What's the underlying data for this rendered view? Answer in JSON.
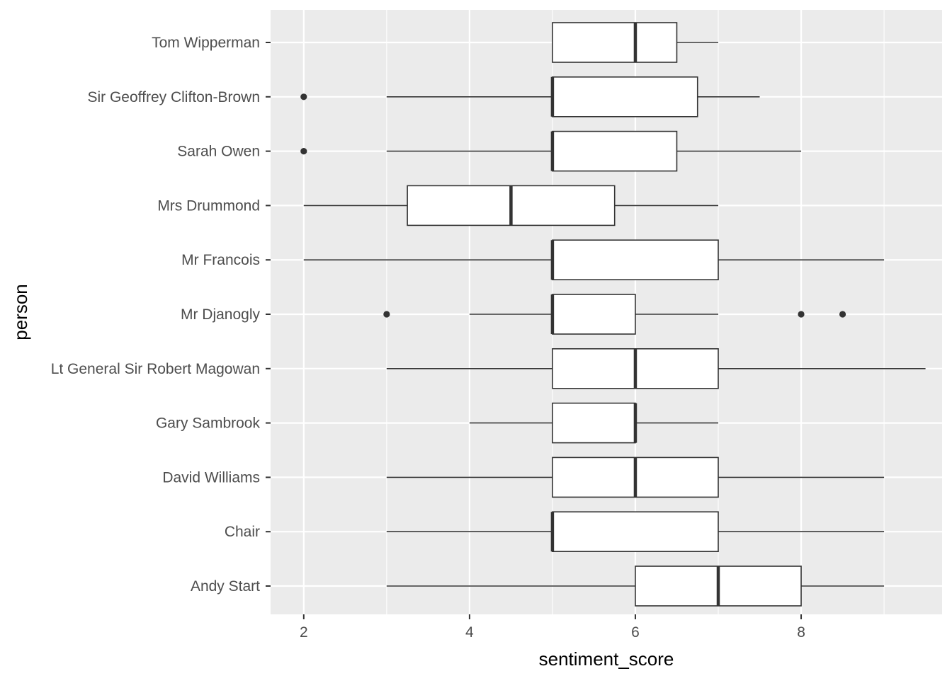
{
  "chart_data": {
    "type": "boxplot",
    "orientation": "horizontal",
    "xlabel": "sentiment_score",
    "ylabel": "person",
    "xlim": [
      1.6,
      9.7
    ],
    "x_ticks": [
      2,
      4,
      6,
      8
    ],
    "x_tick_labels": [
      "2",
      "4",
      "6",
      "8"
    ],
    "grid": true,
    "legend": "none",
    "colors": {
      "panel_background": "#ebebeb",
      "grid": "#ffffff",
      "box_fill": "#ffffff",
      "box_stroke": "#333333",
      "outlier": "#333333"
    },
    "categories": [
      "Andy Start",
      "Chair",
      "David Williams",
      "Gary Sambrook",
      "Lt General Sir Robert Magowan",
      "Mr Djanogly",
      "Mr Francois",
      "Mrs Drummond",
      "Sarah Owen",
      "Sir Geoffrey Clifton-Brown",
      "Tom Wipperman"
    ],
    "boxes": [
      {
        "category": "Andy Start",
        "whisker_low": 3,
        "q1": 6,
        "median": 7,
        "q3": 8,
        "whisker_high": 9,
        "outliers": []
      },
      {
        "category": "Chair",
        "whisker_low": 3,
        "q1": 5,
        "median": 5,
        "q3": 7,
        "whisker_high": 9,
        "outliers": []
      },
      {
        "category": "David Williams",
        "whisker_low": 3,
        "q1": 5,
        "median": 6,
        "q3": 7,
        "whisker_high": 9,
        "outliers": []
      },
      {
        "category": "Gary Sambrook",
        "whisker_low": 4,
        "q1": 5,
        "median": 6,
        "q3": 6,
        "whisker_high": 7,
        "outliers": []
      },
      {
        "category": "Lt General Sir Robert Magowan",
        "whisker_low": 3,
        "q1": 5,
        "median": 6,
        "q3": 7,
        "whisker_high": 9.5,
        "outliers": []
      },
      {
        "category": "Mr Djanogly",
        "whisker_low": 4,
        "q1": 5,
        "median": 5,
        "q3": 6,
        "whisker_high": 7,
        "outliers": [
          3,
          8,
          8.5
        ]
      },
      {
        "category": "Mr Francois",
        "whisker_low": 2,
        "q1": 5,
        "median": 5,
        "q3": 7,
        "whisker_high": 9,
        "outliers": []
      },
      {
        "category": "Mrs Drummond",
        "whisker_low": 2,
        "q1": 3.25,
        "median": 4.5,
        "q3": 5.75,
        "whisker_high": 7,
        "outliers": []
      },
      {
        "category": "Sarah Owen",
        "whisker_low": 3,
        "q1": 5,
        "median": 5,
        "q3": 6.5,
        "whisker_high": 8,
        "outliers": [
          2
        ]
      },
      {
        "category": "Sir Geoffrey Clifton-Brown",
        "whisker_low": 3,
        "q1": 5,
        "median": 5,
        "q3": 6.75,
        "whisker_high": 7.5,
        "outliers": [
          2
        ]
      },
      {
        "category": "Tom Wipperman",
        "whisker_low": 5,
        "q1": 5,
        "median": 6,
        "q3": 6.5,
        "whisker_high": 7,
        "outliers": []
      }
    ]
  }
}
